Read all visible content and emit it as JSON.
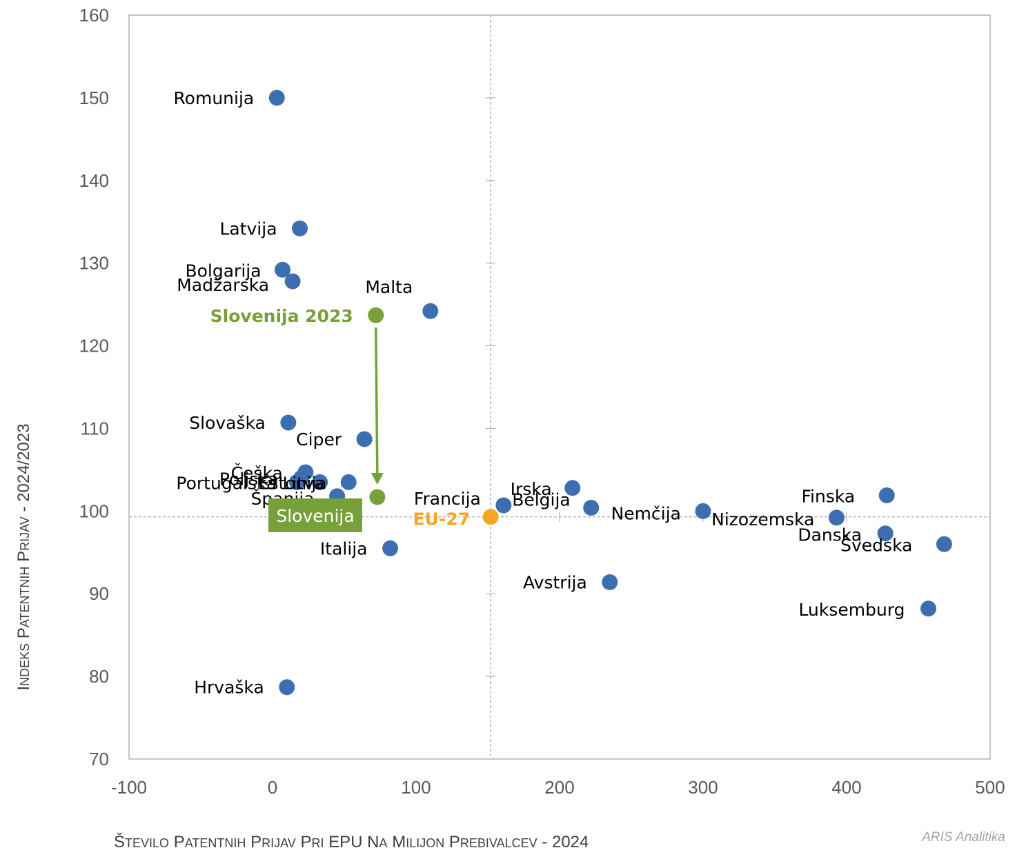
{
  "chart_data": {
    "type": "scatter",
    "title": "",
    "xlabel": "Število patentnih prijav pri EPU na milijon prebivalcev - 2024",
    "ylabel": "Indeks patentnih prijav - 2024/2023",
    "xlim": [
      -100,
      500
    ],
    "ylim": [
      70,
      160
    ],
    "x_ticks": [
      "-100",
      "0",
      "100",
      "200",
      "300",
      "400",
      "500"
    ],
    "y_ticks": [
      "70",
      "80",
      "90",
      "100",
      "110",
      "120",
      "130",
      "140",
      "150",
      "160"
    ],
    "reference_lines": {
      "x": 152,
      "y": 99.3
    },
    "grid": false,
    "points": [
      {
        "label": "Romunija",
        "x": 3,
        "y": 150.0
      },
      {
        "label": "Latvija",
        "x": 19,
        "y": 134.2
      },
      {
        "label": "Bolgarija",
        "x": 7,
        "y": 129.2
      },
      {
        "label": "Madžarska",
        "x": 14,
        "y": 127.8
      },
      {
        "label": "Malta",
        "x": 110,
        "y": 124.2
      },
      {
        "label": "Slovaška",
        "x": 11,
        "y": 110.7
      },
      {
        "label": "Ciper",
        "x": 64,
        "y": 108.7
      },
      {
        "label": "Češka",
        "x": 23,
        "y": 104.7
      },
      {
        "label": "Poljska",
        "x": 20,
        "y": 104.0
      },
      {
        "label": "Portugalska",
        "x": 17,
        "y": 103.5
      },
      {
        "label": "Estonija",
        "x": 33,
        "y": 103.5
      },
      {
        "label": "Litva",
        "x": 53,
        "y": 103.5
      },
      {
        "label": "Španija",
        "x": 45,
        "y": 101.8
      },
      {
        "label": "Italija",
        "x": 82,
        "y": 95.5
      },
      {
        "label": "Hrvaška",
        "x": 10,
        "y": 78.7
      },
      {
        "label": "Francija",
        "x": 161,
        "y": 100.7
      },
      {
        "label": "Irska",
        "x": 209,
        "y": 102.8
      },
      {
        "label": "Belgija",
        "x": 222,
        "y": 100.4
      },
      {
        "label": "Nemčija",
        "x": 300,
        "y": 100.0
      },
      {
        "label": "Avstrija",
        "x": 235,
        "y": 91.4
      },
      {
        "label": "Nizozemska",
        "x": 393,
        "y": 99.2
      },
      {
        "label": "Finska",
        "x": 428,
        "y": 101.9
      },
      {
        "label": "Danska",
        "x": 427,
        "y": 97.3
      },
      {
        "label": "Švedska",
        "x": 468,
        "y": 96.0
      },
      {
        "label": "Luksemburg",
        "x": 457,
        "y": 88.2
      }
    ],
    "highlights": {
      "slovenia_2023": {
        "label": "Slovenija 2023",
        "x": 72,
        "y": 123.7,
        "color": "#77a03a"
      },
      "slovenia": {
        "label": "Slovenija",
        "x": 73,
        "y": 101.7,
        "color": "#77a03a",
        "label_text_color": "#ffffff"
      },
      "eu27": {
        "label": "EU-27",
        "x": 152,
        "y": 99.3,
        "color": "#f5a623"
      }
    },
    "colors": {
      "point": "#3d6fb0",
      "slovenia": "#77a03a",
      "eu27": "#f5a623",
      "reference_line": "#a6a6a6"
    }
  },
  "credit": "ARIS Analitika"
}
